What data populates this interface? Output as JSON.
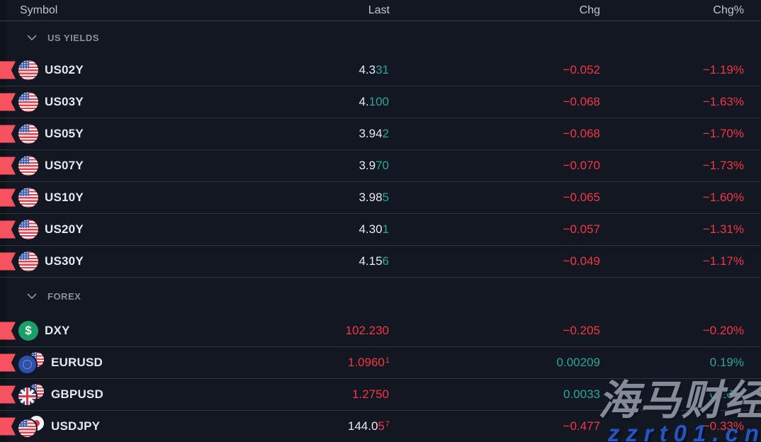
{
  "watchlist": {
    "columns": [
      "Symbol",
      "Last",
      "Chg",
      "Chg%"
    ],
    "sections": [
      {
        "label": "US YIELDS",
        "rows": [
          {
            "symbol": "US02Y",
            "icon": "us-flag",
            "last": {
              "main": "4.3",
              "accent": "31",
              "sup": "",
              "color": "up"
            },
            "chg": {
              "text": "−0.052",
              "color": "down"
            },
            "chg_pct": {
              "text": "−1.19%",
              "color": "down"
            }
          },
          {
            "symbol": "US03Y",
            "icon": "us-flag",
            "last": {
              "main": "4.",
              "accent": "100",
              "sup": "",
              "color": "up"
            },
            "chg": {
              "text": "−0.068",
              "color": "down"
            },
            "chg_pct": {
              "text": "−1.63%",
              "color": "down"
            }
          },
          {
            "symbol": "US05Y",
            "icon": "us-flag",
            "last": {
              "main": "3.94",
              "accent": "2",
              "sup": "",
              "color": "up"
            },
            "chg": {
              "text": "−0.068",
              "color": "down"
            },
            "chg_pct": {
              "text": "−1.70%",
              "color": "down"
            }
          },
          {
            "symbol": "US07Y",
            "icon": "us-flag",
            "last": {
              "main": "3.9",
              "accent": "70",
              "sup": "",
              "color": "up"
            },
            "chg": {
              "text": "−0.070",
              "color": "down"
            },
            "chg_pct": {
              "text": "−1.73%",
              "color": "down"
            }
          },
          {
            "symbol": "US10Y",
            "icon": "us-flag",
            "last": {
              "main": "3.98",
              "accent": "5",
              "sup": "",
              "color": "up"
            },
            "chg": {
              "text": "−0.065",
              "color": "down"
            },
            "chg_pct": {
              "text": "−1.60%",
              "color": "down"
            }
          },
          {
            "symbol": "US20Y",
            "icon": "us-flag",
            "last": {
              "main": "4.30",
              "accent": "1",
              "sup": "",
              "color": "up"
            },
            "chg": {
              "text": "−0.057",
              "color": "down"
            },
            "chg_pct": {
              "text": "−1.31%",
              "color": "down"
            }
          },
          {
            "symbol": "US30Y",
            "icon": "us-flag",
            "last": {
              "main": "4.15",
              "accent": "6",
              "sup": "",
              "color": "up"
            },
            "chg": {
              "text": "−0.049",
              "color": "down"
            },
            "chg_pct": {
              "text": "−1.17%",
              "color": "down"
            }
          }
        ]
      },
      {
        "label": "FOREX",
        "rows": [
          {
            "symbol": "DXY",
            "icon": "dxy-dollar",
            "last": {
              "main": "",
              "accent": "102.230",
              "sup": "",
              "color": "down"
            },
            "chg": {
              "text": "−0.205",
              "color": "down"
            },
            "chg_pct": {
              "text": "−0.20%",
              "color": "down"
            }
          },
          {
            "symbol": "EURUSD",
            "icon": "eurusd-pair",
            "last": {
              "main": "",
              "accent": "1.0960",
              "sup": "1",
              "color": "down"
            },
            "chg": {
              "text": "0.00209",
              "color": "up"
            },
            "chg_pct": {
              "text": "0.19%",
              "color": "up"
            }
          },
          {
            "symbol": "GBPUSD",
            "icon": "gbpusd-pair",
            "last": {
              "main": "",
              "accent": "1.2750",
              "sup": "",
              "color": "down"
            },
            "chg": {
              "text": "0.0033",
              "color": "up"
            },
            "chg_pct": {
              "text": "0.26%",
              "color": "up"
            }
          },
          {
            "symbol": "USDJPY",
            "icon": "usdjpy-pair",
            "last": {
              "main": "144.0",
              "accent": "5",
              "sup": "7",
              "color": "down"
            },
            "chg": {
              "text": "−0.477",
              "color": "down"
            },
            "chg_pct": {
              "text": "−0.33%",
              "color": "down"
            }
          }
        ]
      }
    ]
  },
  "watermark": {
    "title": "海马财经",
    "url": "zzrt01.cn"
  },
  "colors": {
    "up": "#26a69a",
    "down": "#f23645",
    "flag_marker": "#f7525f",
    "background": "#131722",
    "dxy_icon": "#18a068"
  }
}
